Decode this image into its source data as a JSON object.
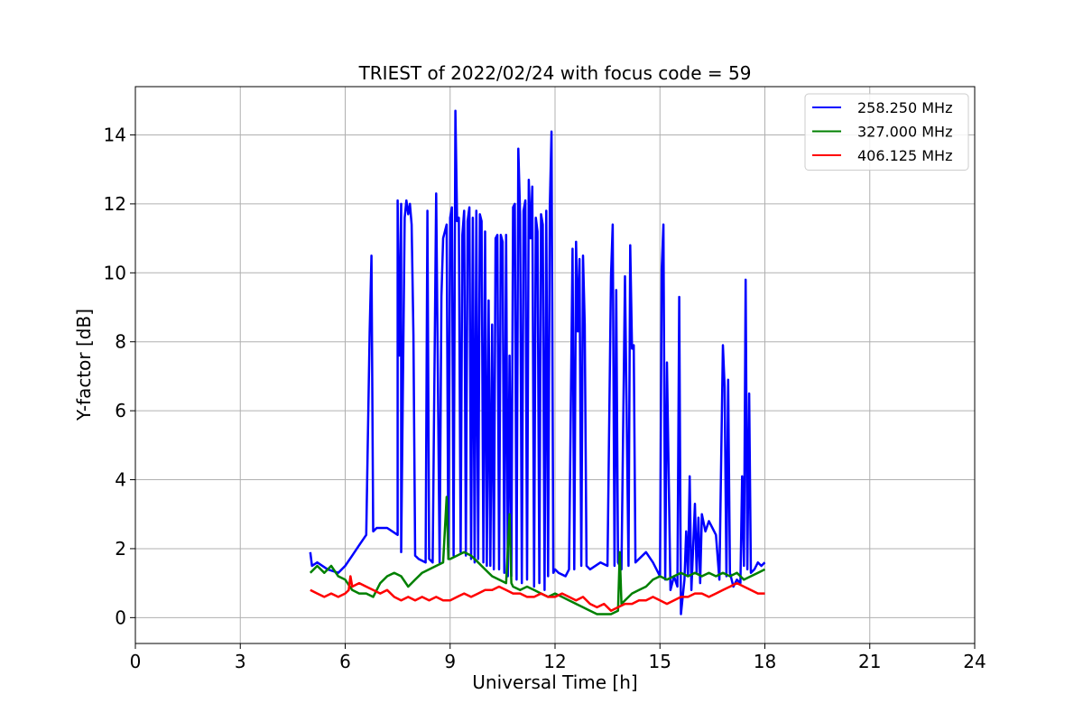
{
  "chart_data": {
    "type": "line",
    "title": "TRIEST of 2022/02/24 with focus code = 59",
    "xlabel": "Universal Time [h]",
    "ylabel": "Y-factor [dB]",
    "xlim": [
      0,
      24
    ],
    "ylim": [
      -0.75,
      15.4
    ],
    "xticks": [
      0,
      3,
      6,
      9,
      12,
      15,
      18,
      21,
      24
    ],
    "yticks": [
      0,
      2,
      4,
      6,
      8,
      10,
      12,
      14
    ],
    "grid": true,
    "legend_position": "top-right",
    "series": [
      {
        "name": "258.250 MHz",
        "color": "#0000ff",
        "x": [
          5.0,
          5.05,
          5.2,
          5.5,
          5.8,
          6.0,
          6.2,
          6.4,
          6.6,
          6.7,
          6.75,
          6.8,
          6.9,
          7.2,
          7.5,
          7.5,
          7.55,
          7.6,
          7.6,
          7.7,
          7.75,
          7.8,
          7.85,
          7.9,
          7.95,
          8.0,
          8.1,
          8.3,
          8.35,
          8.4,
          8.5,
          8.6,
          8.7,
          8.75,
          8.8,
          8.9,
          8.95,
          9.0,
          9.05,
          9.1,
          9.15,
          9.2,
          9.25,
          9.3,
          9.35,
          9.4,
          9.45,
          9.5,
          9.55,
          9.6,
          9.65,
          9.7,
          9.75,
          9.8,
          9.85,
          9.9,
          9.95,
          10.0,
          10.05,
          10.1,
          10.15,
          10.2,
          10.25,
          10.3,
          10.35,
          10.4,
          10.45,
          10.5,
          10.55,
          10.6,
          10.65,
          10.7,
          10.75,
          10.8,
          10.85,
          10.9,
          10.95,
          11.0,
          11.05,
          11.1,
          11.15,
          11.2,
          11.25,
          11.3,
          11.35,
          11.4,
          11.45,
          11.5,
          11.55,
          11.6,
          11.65,
          11.7,
          11.75,
          11.8,
          11.85,
          11.9,
          11.95,
          12.0,
          12.1,
          12.3,
          12.4,
          12.5,
          12.55,
          12.6,
          12.65,
          12.7,
          12.75,
          12.8,
          12.85,
          12.9,
          13.0,
          13.3,
          13.5,
          13.6,
          13.65,
          13.7,
          13.75,
          13.8,
          13.9,
          14.0,
          14.1,
          14.15,
          14.2,
          14.25,
          14.3,
          14.4,
          14.6,
          14.8,
          15.0,
          15.05,
          15.1,
          15.15,
          15.2,
          15.3,
          15.4,
          15.5,
          15.55,
          15.6,
          15.7,
          15.75,
          15.8,
          15.85,
          15.9,
          16.0,
          16.05,
          16.1,
          16.15,
          16.2,
          16.3,
          16.4,
          16.5,
          16.6,
          16.7,
          16.8,
          16.85,
          16.9,
          16.95,
          17.0,
          17.1,
          17.2,
          17.3,
          17.35,
          17.4,
          17.45,
          17.5,
          17.55,
          17.6,
          17.7,
          17.8,
          17.9,
          18.0
        ],
        "y": [
          1.9,
          1.5,
          1.6,
          1.4,
          1.3,
          1.5,
          1.8,
          2.1,
          2.4,
          8.3,
          10.5,
          2.5,
          2.6,
          2.6,
          2.4,
          12.1,
          7.6,
          12.0,
          1.9,
          11.6,
          12.1,
          11.7,
          12.0,
          11.4,
          8.2,
          1.8,
          1.7,
          1.6,
          11.8,
          1.7,
          1.6,
          12.3,
          1.6,
          9.3,
          11.0,
          11.4,
          1.7,
          11.6,
          11.9,
          1.8,
          14.7,
          11.5,
          11.6,
          1.9,
          11.1,
          11.8,
          1.8,
          11.5,
          11.9,
          1.7,
          11.6,
          1.6,
          11.8,
          1.7,
          11.7,
          11.5,
          1.6,
          11.2,
          1.5,
          9.2,
          1.5,
          8.5,
          1.4,
          11.0,
          11.1,
          1.4,
          11.1,
          10.9,
          1.3,
          11.1,
          1.2,
          7.6,
          1.2,
          11.9,
          12.0,
          1.1,
          13.6,
          11.7,
          1.0,
          11.8,
          12.1,
          1.1,
          12.7,
          11.0,
          12.5,
          0.9,
          11.6,
          11.2,
          1.0,
          11.7,
          11.4,
          0.8,
          11.8,
          1.2,
          11.9,
          14.1,
          1.3,
          1.4,
          1.3,
          1.2,
          1.4,
          10.7,
          1.4,
          10.9,
          8.3,
          10.4,
          1.5,
          10.5,
          8.5,
          1.5,
          1.4,
          1.6,
          1.5,
          9.9,
          11.4,
          1.5,
          9.5,
          1.6,
          1.4,
          9.9,
          1.5,
          10.8,
          7.8,
          7.9,
          1.6,
          1.7,
          1.9,
          1.6,
          1.2,
          10.1,
          11.4,
          1.1,
          7.4,
          0.8,
          1.2,
          0.9,
          9.3,
          0.1,
          1.1,
          2.5,
          1.2,
          4.1,
          0.8,
          3.3,
          1.3,
          2.9,
          1.0,
          3.0,
          2.5,
          2.8,
          2.6,
          2.4,
          1.1,
          7.9,
          6.7,
          1.2,
          6.9,
          1.3,
          0.9,
          1.1,
          1.0,
          4.1,
          1.5,
          9.8,
          1.4,
          6.5,
          1.3,
          1.4,
          1.6,
          1.5,
          1.6
        ]
      },
      {
        "name": "327.000 MHz",
        "color": "#008000",
        "x": [
          5.0,
          5.2,
          5.4,
          5.6,
          5.8,
          6.0,
          6.2,
          6.4,
          6.6,
          6.8,
          7.0,
          7.2,
          7.4,
          7.6,
          7.8,
          8.0,
          8.2,
          8.4,
          8.6,
          8.8,
          8.9,
          8.95,
          9.0,
          9.2,
          9.4,
          9.6,
          9.8,
          10.0,
          10.2,
          10.4,
          10.6,
          10.7,
          10.75,
          10.8,
          11.0,
          11.2,
          11.4,
          11.6,
          11.8,
          12.0,
          12.2,
          12.4,
          12.6,
          12.8,
          13.0,
          13.2,
          13.4,
          13.6,
          13.8,
          13.85,
          13.9,
          14.0,
          14.2,
          14.4,
          14.6,
          14.8,
          15.0,
          15.2,
          15.4,
          15.6,
          15.8,
          16.0,
          16.2,
          16.4,
          16.6,
          16.8,
          17.0,
          17.2,
          17.4,
          17.6,
          17.8,
          18.0
        ],
        "y": [
          1.3,
          1.5,
          1.3,
          1.5,
          1.2,
          1.1,
          0.8,
          0.7,
          0.7,
          0.6,
          1.0,
          1.2,
          1.3,
          1.2,
          0.9,
          1.1,
          1.3,
          1.4,
          1.5,
          1.6,
          3.5,
          1.7,
          1.7,
          1.8,
          1.9,
          1.8,
          1.6,
          1.4,
          1.2,
          1.1,
          1.0,
          3.0,
          1.0,
          0.9,
          0.8,
          0.9,
          0.8,
          0.7,
          0.6,
          0.7,
          0.6,
          0.5,
          0.4,
          0.3,
          0.2,
          0.1,
          0.1,
          0.1,
          0.2,
          1.9,
          0.4,
          0.5,
          0.7,
          0.8,
          0.9,
          1.1,
          1.2,
          1.1,
          1.2,
          1.3,
          1.2,
          1.3,
          1.2,
          1.3,
          1.2,
          1.3,
          1.2,
          1.3,
          1.1,
          1.2,
          1.3,
          1.4
        ]
      },
      {
        "name": "406.125 MHz",
        "color": "#ff0000",
        "x": [
          5.0,
          5.2,
          5.4,
          5.6,
          5.8,
          6.0,
          6.1,
          6.15,
          6.2,
          6.4,
          6.6,
          6.8,
          7.0,
          7.2,
          7.4,
          7.6,
          7.8,
          8.0,
          8.2,
          8.4,
          8.6,
          8.8,
          9.0,
          9.2,
          9.4,
          9.6,
          9.8,
          10.0,
          10.2,
          10.4,
          10.6,
          10.8,
          11.0,
          11.2,
          11.4,
          11.6,
          11.8,
          12.0,
          12.2,
          12.4,
          12.6,
          12.8,
          13.0,
          13.2,
          13.4,
          13.6,
          13.8,
          14.0,
          14.2,
          14.4,
          14.6,
          14.8,
          15.0,
          15.2,
          15.4,
          15.6,
          15.8,
          16.0,
          16.2,
          16.4,
          16.6,
          16.8,
          17.0,
          17.2,
          17.4,
          17.6,
          17.8,
          18.0
        ],
        "y": [
          0.8,
          0.7,
          0.6,
          0.7,
          0.6,
          0.7,
          0.8,
          1.2,
          0.9,
          1.0,
          0.9,
          0.8,
          0.7,
          0.8,
          0.6,
          0.5,
          0.6,
          0.5,
          0.6,
          0.5,
          0.6,
          0.5,
          0.5,
          0.6,
          0.7,
          0.6,
          0.7,
          0.8,
          0.8,
          0.9,
          0.8,
          0.7,
          0.7,
          0.6,
          0.6,
          0.7,
          0.6,
          0.6,
          0.7,
          0.6,
          0.5,
          0.6,
          0.4,
          0.3,
          0.4,
          0.2,
          0.3,
          0.4,
          0.4,
          0.5,
          0.5,
          0.6,
          0.5,
          0.4,
          0.5,
          0.6,
          0.6,
          0.7,
          0.7,
          0.6,
          0.7,
          0.8,
          0.9,
          1.0,
          0.9,
          0.8,
          0.7,
          0.7
        ]
      }
    ]
  }
}
